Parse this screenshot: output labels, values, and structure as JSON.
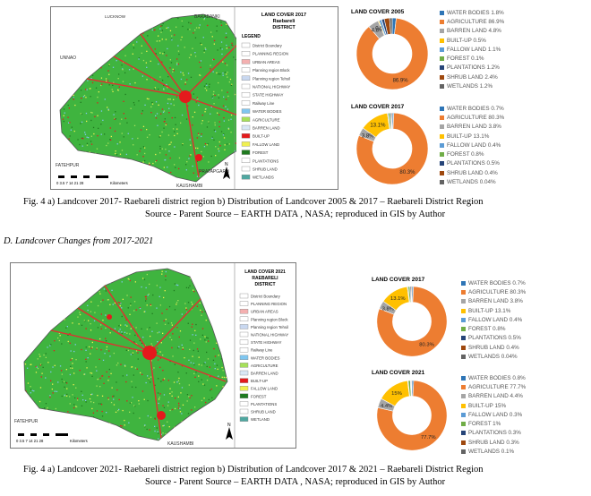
{
  "map_2017": {
    "title_lines": [
      "LAND COVER 2017",
      "Raebareli",
      "DISTRICT"
    ],
    "legend_title": "LEGEND",
    "legend_items": [
      {
        "label": "District Boundary",
        "color": "#ffffff"
      },
      {
        "label": "PLANNING REGION",
        "color": "#ffffff"
      },
      {
        "label": "URBAN AREAS",
        "color": "#f4b0b0"
      },
      {
        "label": "Planning region Block",
        "color": "#ffffff"
      },
      {
        "label": "Planning region Tehsil",
        "color": "#c9d8f0"
      },
      {
        "label": "NATIONAL HIGHWAY",
        "color": "#ffffff"
      },
      {
        "label": "STATE HIGHWAY",
        "color": "#ffffff"
      },
      {
        "label": "Railway Line",
        "color": "#ffffff"
      },
      {
        "label": "WATER BODIES",
        "color": "#7fc6f0"
      },
      {
        "label": "AGRICULTURE",
        "color": "#a6e05a"
      },
      {
        "label": "BARREN LAND",
        "color": "#d9e8f5"
      },
      {
        "label": "BUILT-UP",
        "color": "#e41a1c"
      },
      {
        "label": "FALLOW LAND",
        "color": "#f0f050"
      },
      {
        "label": "FOREST",
        "color": "#1f7a1f"
      },
      {
        "label": "PLANTATIONS",
        "color": "#ffffff"
      },
      {
        "label": "SHRUB LAND",
        "color": "#ffffff"
      },
      {
        "label": "WETLANDS",
        "color": "#4fa7a0"
      }
    ],
    "places": [
      "LUCKNOW",
      "BARABANKI",
      "UNNAO",
      "FATEHPUR",
      "PRATAPGARH",
      "KAUSHAMBI"
    ],
    "scale_text": "0  3.5  7   14   21   28",
    "scale_unit": "Kilometers",
    "north": "N"
  },
  "map_2021": {
    "title_lines": [
      "LAND COVER 2021",
      "RAEBARELI",
      "DISTRICT"
    ],
    "legend_items": [
      {
        "label": "District Boundary",
        "color": "#ffffff"
      },
      {
        "label": "PLANNING REGION",
        "color": "#ffffff"
      },
      {
        "label": "URBAN AREAS",
        "color": "#f4b0b0"
      },
      {
        "label": "Planning region Block",
        "color": "#ffffff"
      },
      {
        "label": "Planning region Tehsil",
        "color": "#c9d8f0"
      },
      {
        "label": "NATIONAL HIGHWAY",
        "color": "#ffffff"
      },
      {
        "label": "STATE HIGHWAY",
        "color": "#ffffff"
      },
      {
        "label": "Railway Line",
        "color": "#ffffff"
      },
      {
        "label": "WATER BODIES",
        "color": "#7fc6f0"
      },
      {
        "label": "AGRICULTURE",
        "color": "#a6e05a"
      },
      {
        "label": "BARREN LAND",
        "color": "#d9e8f5"
      },
      {
        "label": "BUILT-UP",
        "color": "#e41a1c"
      },
      {
        "label": "FALLOW LAND",
        "color": "#f0f050"
      },
      {
        "label": "FOREST",
        "color": "#1f7a1f"
      },
      {
        "label": "PLANTATIONS",
        "color": "#ffffff"
      },
      {
        "label": "SHRUB LAND",
        "color": "#ffffff"
      },
      {
        "label": "WETLAND",
        "color": "#4fa7a0"
      }
    ],
    "places": [
      "FATEHPUR",
      "KAUSHAMBI"
    ],
    "scale_text": "0  3.5  7   14   21   28",
    "scale_unit": "Kilometers",
    "north": "N"
  },
  "captions": {
    "fig1_line1": "Fig. 4 a) Landcover 2017- Raebareli district region        b) Distribution of Landcover 2005 & 2017 – Raebareli District Region",
    "fig1_line2": "Source - Parent Source – EARTH DATA , NASA; reproduced in GIS by Author",
    "section": "D.  Landcover Changes from 2017-2021",
    "fig2_line1": "Fig. 4 a) Landcover 2021- Raebareli district region        b) Distribution of Landcover 2017 & 2021 – Raebareli District Region",
    "fig2_line2": "Source - Parent Source – EARTH DATA , NASA; reproduced in GIS by Author"
  },
  "colors": [
    "#2e75b6",
    "#ed7d31",
    "#a5a5a5",
    "#ffc000",
    "#5b9bd5",
    "#70ad47",
    "#264478",
    "#9e480e",
    "#636363"
  ],
  "chart_data": [
    {
      "type": "pie",
      "title": "LAND COVER 2005",
      "categories": [
        "WATER BODIES",
        "AGRICULTURE",
        "BARREN LAND",
        "BUILT-UP",
        "FALLOW LAND",
        "FOREST",
        "PLANTATIONS",
        "SHRUB LAND",
        "WETLANDS"
      ],
      "values": [
        1.8,
        86.9,
        4.8,
        0.5,
        1.1,
        0.1,
        1.2,
        2.4,
        1.2
      ],
      "legend_labels": [
        "WATER BODIES 1.8%",
        "AGRICULTURE 86.9%",
        "BARREN LAND 4.8%",
        "BUILT-UP 0.5%",
        "FALLOW LAND 1.1%",
        "FOREST 0.1%",
        "PLANTATIONS 1.2%",
        "SHRUB LAND 2.4%",
        "WETLANDS 1.2%"
      ],
      "data_labels": [
        "",
        "86.9%",
        "4.8%",
        "0.5%",
        "",
        "",
        "",
        "",
        ""
      ],
      "legend": "right"
    },
    {
      "type": "pie",
      "title": "LAND COVER 2017",
      "categories": [
        "WATER BODIES",
        "AGRICULTURE",
        "BARREN LAND",
        "BUILT-UP",
        "FALLOW LAND",
        "FOREST",
        "PLANTATIONS",
        "SHRUB LAND",
        "WETLANDS"
      ],
      "values": [
        0.7,
        80.3,
        3.8,
        13.1,
        0.4,
        0.8,
        0.5,
        0.4,
        0.04
      ],
      "legend_labels": [
        "WATER BODIES 0.7%",
        "AGRICULTURE 80.3%",
        "BARREN LAND 3.8%",
        "BUILT-UP 13.1%",
        "FALLOW LAND 0.4%",
        "FOREST 0.8%",
        "PLANTATIONS 0.5%",
        "SHRUB LAND 0.4%",
        "WETLANDS 0.04%"
      ],
      "data_labels": [
        "",
        "80.3%",
        "3.8%",
        "13.1%",
        "",
        "",
        "",
        "",
        ""
      ],
      "legend": "right"
    },
    {
      "type": "pie",
      "title": "LAND COVER 2017",
      "categories": [
        "WATER BODIES",
        "AGRICULTURE",
        "BARREN LAND",
        "BUILT-UP",
        "FALLOW LAND",
        "FOREST",
        "PLANTATIONS",
        "SHRUB LAND",
        "WETLANDS"
      ],
      "values": [
        0.7,
        80.3,
        3.8,
        13.1,
        0.4,
        0.8,
        0.5,
        0.4,
        0.04
      ],
      "legend_labels": [
        "WATER BODIES 0.7%",
        "AGRICULTURE 80.3%",
        "BARREN LAND 3.8%",
        "BUILT-UP 13.1%",
        "FALLOW LAND 0.4%",
        "FOREST 0.8%",
        "PLANTATIONS 0.5%",
        "SHRUB LAND 0.4%",
        "WETLANDS 0.04%"
      ],
      "data_labels": [
        "",
        "80.3%",
        "3.8%",
        "13.1%",
        "",
        "",
        "",
        "",
        ""
      ],
      "legend": "right"
    },
    {
      "type": "pie",
      "title": "LAND COVER 2021",
      "categories": [
        "WATER BODIES",
        "AGRICULTURE",
        "BARREN LAND",
        "BUILT-UP",
        "FALLOW LAND",
        "FOREST",
        "PLANTATIONS",
        "SHRUB LAND",
        "WETLANDS"
      ],
      "values": [
        0.8,
        77.7,
        4.4,
        15,
        0.3,
        1,
        0.3,
        0.3,
        0.1
      ],
      "legend_labels": [
        "WATER BODIES 0.8%",
        "AGRICULTURE 77.7%",
        "BARREN LAND 4.4%",
        "BUILT-UP 15%",
        "FALLOW LAND 0.3%",
        "FOREST 1%",
        "PLANTATIONS 0.3%",
        "SHRUB LAND 0.3%",
        "WETLANDS 0.1%"
      ],
      "data_labels": [
        "",
        "77.7%",
        "4.4%",
        "15%",
        "",
        "",
        "",
        "",
        ""
      ],
      "legend": "right"
    }
  ]
}
